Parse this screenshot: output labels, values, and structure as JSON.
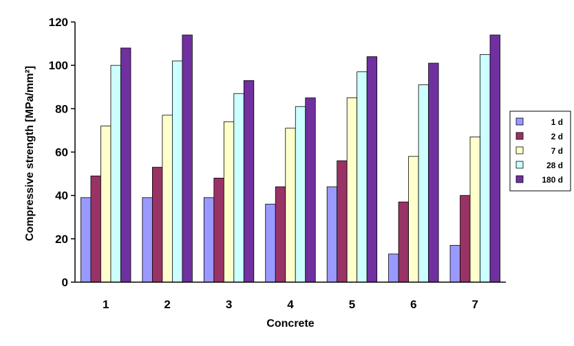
{
  "chart_data": {
    "type": "bar",
    "title": "",
    "xlabel": "Concrete",
    "ylabel": "Compressive strength [MPa/mm²]",
    "ylim": [
      0,
      120
    ],
    "yticks": [
      0,
      20,
      40,
      60,
      80,
      100,
      120
    ],
    "grid": false,
    "legend_position": "right",
    "categories": [
      "1",
      "2",
      "3",
      "4",
      "5",
      "6",
      "7"
    ],
    "series": [
      {
        "name": "1 d",
        "color": "#9999ff",
        "values": [
          39,
          39,
          39,
          36,
          44,
          13,
          17
        ]
      },
      {
        "name": "2 d",
        "color": "#993366",
        "values": [
          49,
          53,
          48,
          44,
          56,
          37,
          40
        ]
      },
      {
        "name": "7 d",
        "color": "#ffffcc",
        "values": [
          72,
          77,
          74,
          71,
          85,
          58,
          67
        ]
      },
      {
        "name": "28 d",
        "color": "#ccffff",
        "values": [
          100,
          102,
          87,
          81,
          97,
          91,
          105
        ]
      },
      {
        "name": "180 d",
        "color": "#7030a0",
        "values": [
          108,
          114,
          93,
          85,
          104,
          101,
          114
        ]
      }
    ]
  }
}
